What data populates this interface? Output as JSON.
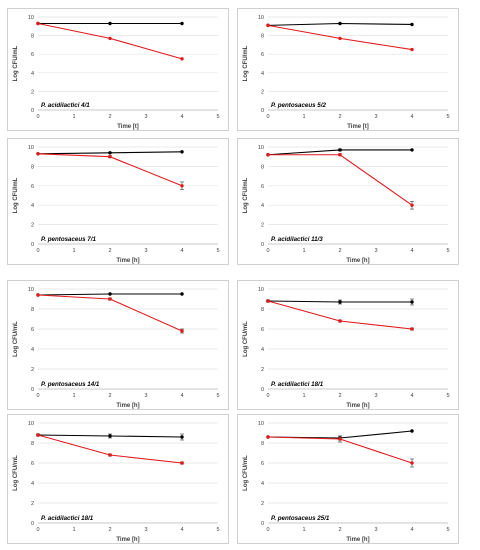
{
  "chart_data": [
    {
      "type": "line",
      "strain": "P. acidilactici 4/1",
      "xlabel": "Time [t]",
      "ylabel": "Log CFU/mL",
      "xlim": [
        0,
        5
      ],
      "ylim": [
        0,
        10
      ],
      "x_ticks": [
        "0",
        "1",
        "2",
        "3",
        "4",
        "5"
      ],
      "y_ticks": [
        "0",
        "2",
        "4",
        "6",
        "8",
        "10"
      ],
      "x": [
        0,
        2,
        4
      ],
      "series": [
        {
          "color": "#000000",
          "values": [
            9.3,
            9.3,
            9.3
          ],
          "errors": [
            0,
            0,
            0
          ]
        },
        {
          "color": "#e31a1c",
          "values": [
            9.3,
            7.7,
            5.5
          ],
          "errors": [
            0,
            0,
            0
          ]
        }
      ]
    },
    {
      "type": "line",
      "strain": "P. pentosaceus 5/2",
      "xlabel": "Time [t]",
      "ylabel": "Log CFU/mL",
      "xlim": [
        0,
        5
      ],
      "ylim": [
        0,
        10
      ],
      "x_ticks": [
        "0",
        "1",
        "2",
        "3",
        "4",
        "5"
      ],
      "y_ticks": [
        "0",
        "2",
        "4",
        "6",
        "8",
        "10"
      ],
      "x": [
        0,
        2,
        4
      ],
      "series": [
        {
          "color": "#000000",
          "values": [
            9.1,
            9.3,
            9.2
          ],
          "errors": [
            0,
            0,
            0
          ]
        },
        {
          "color": "#e31a1c",
          "values": [
            9.1,
            7.7,
            6.5
          ],
          "errors": [
            0,
            0,
            0
          ]
        }
      ]
    },
    {
      "type": "line",
      "strain": "P. pentosaceus 7/1",
      "xlabel": "Time [h]",
      "ylabel": "Log CFU/mL",
      "xlim": [
        0,
        5
      ],
      "ylim": [
        0,
        10
      ],
      "x_ticks": [
        "0",
        "1",
        "2",
        "3",
        "4",
        "5"
      ],
      "y_ticks": [
        "0",
        "2",
        "4",
        "6",
        "8",
        "10"
      ],
      "x": [
        0,
        2,
        4
      ],
      "series": [
        {
          "color": "#000000",
          "values": [
            9.3,
            9.4,
            9.5
          ],
          "errors": [
            0,
            0,
            0
          ]
        },
        {
          "color": "#e31a1c",
          "values": [
            9.3,
            9.0,
            6.0
          ],
          "errors": [
            0,
            0.1,
            0.4
          ]
        }
      ]
    },
    {
      "type": "line",
      "strain": "P. acidilactici 11/3",
      "xlabel": "Time [h]",
      "ylabel": "Log CFU/mL",
      "xlim": [
        0,
        5
      ],
      "ylim": [
        0,
        10
      ],
      "x_ticks": [
        "0",
        "1",
        "2",
        "3",
        "4",
        "5"
      ],
      "y_ticks": [
        "0",
        "2",
        "4",
        "6",
        "8",
        "10"
      ],
      "x": [
        0,
        2,
        4
      ],
      "series": [
        {
          "color": "#000000",
          "values": [
            9.2,
            9.7,
            9.7
          ],
          "errors": [
            0,
            0.1,
            0
          ]
        },
        {
          "color": "#e31a1c",
          "values": [
            9.2,
            9.2,
            4.0
          ],
          "errors": [
            0,
            0.1,
            0.4
          ]
        }
      ]
    },
    {
      "type": "line",
      "strain": "P. pentosaceus 14/1",
      "xlabel": "Time [h]",
      "ylabel": "Log CFU/mL",
      "xlim": [
        0,
        5
      ],
      "ylim": [
        0,
        10
      ],
      "x_ticks": [
        "0",
        "1",
        "2",
        "3",
        "4",
        "5"
      ],
      "y_ticks": [
        "0",
        "2",
        "4",
        "6",
        "8",
        "10"
      ],
      "x": [
        0,
        2,
        4
      ],
      "series": [
        {
          "color": "#000000",
          "values": [
            9.4,
            9.5,
            9.5
          ],
          "errors": [
            0,
            0,
            0
          ]
        },
        {
          "color": "#e31a1c",
          "values": [
            9.4,
            9.0,
            5.8
          ],
          "errors": [
            0,
            0.1,
            0.2
          ]
        }
      ]
    },
    {
      "type": "line",
      "strain": "P. acidilactici 18/1",
      "xlabel": "Time [h]",
      "ylabel": "Log CFU/mL",
      "xlim": [
        0,
        5
      ],
      "ylim": [
        0,
        10
      ],
      "x_ticks": [
        "0",
        "1",
        "2",
        "3",
        "4",
        "5"
      ],
      "y_ticks": [
        "0",
        "2",
        "4",
        "6",
        "8",
        "10"
      ],
      "x": [
        0,
        2,
        4
      ],
      "series": [
        {
          "color": "#000000",
          "values": [
            8.8,
            8.7,
            8.7
          ],
          "errors": [
            0.1,
            0.2,
            0.3
          ]
        },
        {
          "color": "#e31a1c",
          "values": [
            8.8,
            6.8,
            6.0
          ],
          "errors": [
            0,
            0.1,
            0.1
          ]
        }
      ]
    },
    {
      "type": "line",
      "strain": "P. acidilactici 18/1",
      "xlabel": "Time [h]",
      "ylabel": "Log CFU/mL",
      "xlim": [
        0,
        5
      ],
      "ylim": [
        0,
        10
      ],
      "x_ticks": [
        "0",
        "1",
        "2",
        "3",
        "4",
        "5"
      ],
      "y_ticks": [
        "0",
        "2",
        "4",
        "6",
        "8",
        "10"
      ],
      "x": [
        0,
        2,
        4
      ],
      "series": [
        {
          "color": "#000000",
          "values": [
            8.8,
            8.7,
            8.6
          ],
          "errors": [
            0.1,
            0.2,
            0.3
          ]
        },
        {
          "color": "#e31a1c",
          "values": [
            8.8,
            6.8,
            6.0
          ],
          "errors": [
            0,
            0.1,
            0.1
          ]
        }
      ]
    },
    {
      "type": "line",
      "strain": "P. pentosaceus 25/1",
      "xlabel": "Time [h]",
      "ylabel": "Log CFU/mL",
      "xlim": [
        0,
        5
      ],
      "ylim": [
        0,
        10
      ],
      "x_ticks": [
        "0",
        "1",
        "2",
        "3",
        "4",
        "5"
      ],
      "y_ticks": [
        "0",
        "2",
        "4",
        "6",
        "8",
        "10"
      ],
      "x": [
        0,
        2,
        4
      ],
      "series": [
        {
          "color": "#000000",
          "values": [
            8.6,
            8.5,
            9.2
          ],
          "errors": [
            0,
            0.2,
            0
          ]
        },
        {
          "color": "#e31a1c",
          "values": [
            8.6,
            8.4,
            6.0
          ],
          "errors": [
            0,
            0.3,
            0.4
          ]
        }
      ]
    }
  ]
}
